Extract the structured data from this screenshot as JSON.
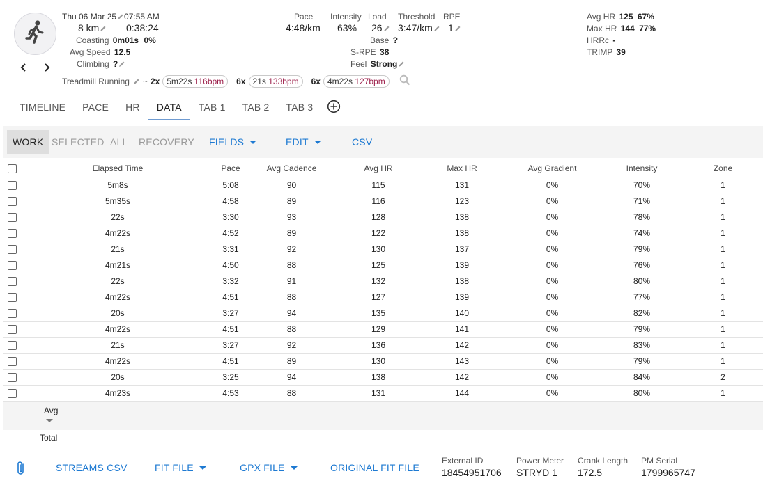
{
  "header": {
    "activity_icon": "running-person-icon",
    "date": "Thu 06 Mar 25",
    "time": "07:55 AM",
    "distance": "8 km",
    "duration": "0:38:24",
    "coasting": {
      "label": "Coasting",
      "value": "0m01s",
      "percent": "0%"
    },
    "avg_speed": {
      "label": "Avg Speed",
      "value": "12.5"
    },
    "climbing": {
      "label": "Climbing",
      "value": "?"
    },
    "pace": {
      "label": "Pace",
      "value": "4:48/km"
    },
    "intensity": {
      "label": "Intensity",
      "value": "63%"
    },
    "load": {
      "label": "Load",
      "value": "26"
    },
    "threshold": {
      "label": "Threshold",
      "value": "3:47/km"
    },
    "rpe": {
      "label": "RPE",
      "value": "1"
    },
    "base": {
      "label": "Base",
      "value": "?"
    },
    "srpe": {
      "label": "S-RPE",
      "value": "38"
    },
    "feel": {
      "label": "Feel",
      "value": "Strong"
    },
    "avg_hr": {
      "label": "Avg HR",
      "value": "125",
      "percent": "67%"
    },
    "max_hr": {
      "label": "Max HR",
      "value": "144",
      "percent": "77%"
    },
    "hrrc": {
      "label": "HRRc",
      "value": "-"
    },
    "trimp": {
      "label": "TRIMP",
      "value": "39"
    },
    "activity_type": "Treadmill Running",
    "interval_prefix": "~",
    "intervals": [
      {
        "reps": "2x",
        "duration": "5m22s",
        "bpm": "116bpm"
      },
      {
        "reps": "6x",
        "duration": "21s",
        "bpm": "133bpm"
      },
      {
        "reps": "6x",
        "duration": "4m22s",
        "bpm": "127bpm"
      }
    ]
  },
  "tabs": [
    {
      "label": "TIMELINE",
      "active": false
    },
    {
      "label": "PACE",
      "active": false
    },
    {
      "label": "HR",
      "active": false
    },
    {
      "label": "DATA",
      "active": true
    },
    {
      "label": "TAB 1",
      "active": false
    },
    {
      "label": "TAB 2",
      "active": false
    },
    {
      "label": "TAB 3",
      "active": false
    }
  ],
  "toolbar": {
    "work": "WORK",
    "selected": "SELECTED",
    "all": "ALL",
    "recovery": "RECOVERY",
    "fields": "FIELDS",
    "edit": "EDIT",
    "csv": "CSV"
  },
  "table": {
    "columns": [
      "Elapsed Time",
      "Pace",
      "Avg Cadence",
      "Avg HR",
      "Max HR",
      "Avg Gradient",
      "Intensity",
      "Zone"
    ],
    "rows": [
      [
        "5m8s",
        "5:08",
        "90",
        "115",
        "131",
        "0%",
        "70%",
        "1"
      ],
      [
        "5m35s",
        "4:58",
        "89",
        "116",
        "123",
        "0%",
        "71%",
        "1"
      ],
      [
        "22s",
        "3:30",
        "93",
        "128",
        "138",
        "0%",
        "78%",
        "1"
      ],
      [
        "4m22s",
        "4:52",
        "89",
        "122",
        "138",
        "0%",
        "74%",
        "1"
      ],
      [
        "21s",
        "3:31",
        "92",
        "130",
        "137",
        "0%",
        "79%",
        "1"
      ],
      [
        "4m21s",
        "4:50",
        "88",
        "125",
        "139",
        "0%",
        "76%",
        "1"
      ],
      [
        "22s",
        "3:32",
        "91",
        "132",
        "138",
        "0%",
        "80%",
        "1"
      ],
      [
        "4m22s",
        "4:51",
        "88",
        "127",
        "139",
        "0%",
        "77%",
        "1"
      ],
      [
        "20s",
        "3:27",
        "94",
        "135",
        "140",
        "0%",
        "82%",
        "1"
      ],
      [
        "4m22s",
        "4:51",
        "88",
        "129",
        "141",
        "0%",
        "79%",
        "1"
      ],
      [
        "21s",
        "3:27",
        "92",
        "136",
        "142",
        "0%",
        "83%",
        "1"
      ],
      [
        "4m22s",
        "4:51",
        "89",
        "130",
        "143",
        "0%",
        "79%",
        "1"
      ],
      [
        "20s",
        "3:25",
        "94",
        "138",
        "142",
        "0%",
        "84%",
        "2"
      ],
      [
        "4m23s",
        "4:53",
        "88",
        "131",
        "144",
        "0%",
        "80%",
        "1"
      ]
    ],
    "avg_label": "Avg",
    "total_label": "Total"
  },
  "footer": {
    "attach_icon": "paperclip-icon",
    "streams_csv": "STREAMS CSV",
    "fit_file": "FIT FILE",
    "gpx_file": "GPX FILE",
    "original_fit_file": "ORIGINAL FIT FILE",
    "meta": [
      {
        "label": "External ID",
        "value": "18454951706"
      },
      {
        "label": "Power Meter",
        "value": "STRYD 1"
      },
      {
        "label": "Crank Length",
        "value": "172.5"
      },
      {
        "label": "PM Serial",
        "value": "1799965747"
      }
    ]
  }
}
